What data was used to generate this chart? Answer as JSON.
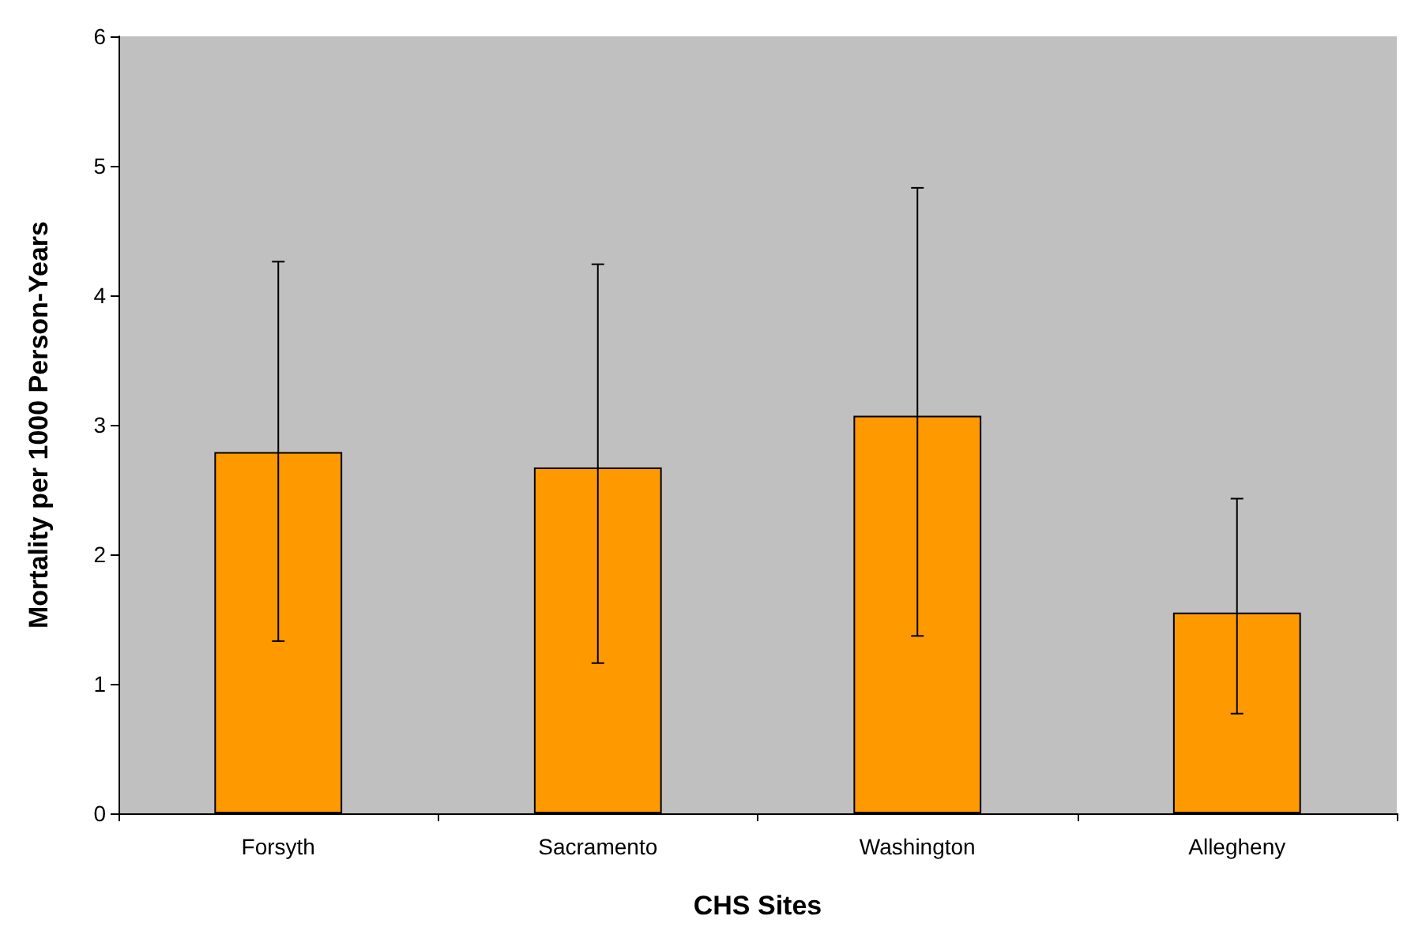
{
  "chart_data": {
    "type": "bar",
    "xlabel": "CHS Sites",
    "ylabel": "Mortality per 1000 Person-Years",
    "categories": [
      "Forsyth",
      "Sacramento",
      "Washington",
      "Allegheny"
    ],
    "values": [
      2.79,
      2.67,
      3.07,
      1.55
    ],
    "errors": [
      [
        1.33,
        4.26
      ],
      [
        1.16,
        4.24
      ],
      [
        1.37,
        4.83
      ],
      [
        0.77,
        2.43
      ]
    ],
    "color": "#ff9900",
    "ylim": [
      0,
      6
    ],
    "yticks": [
      0,
      1,
      2,
      3,
      4,
      5,
      6
    ],
    "grid": false
  }
}
